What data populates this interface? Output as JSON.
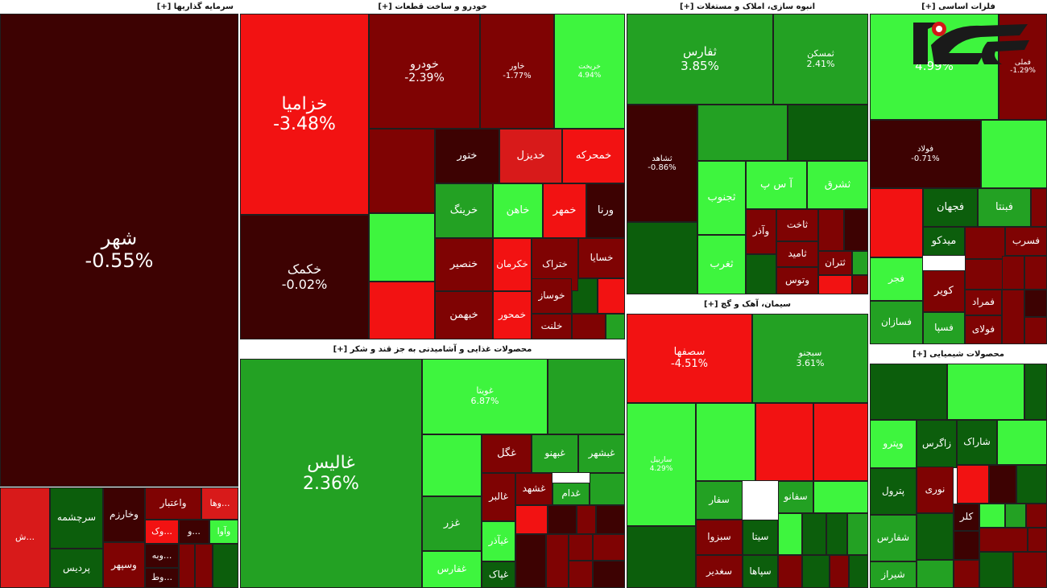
{
  "chart_data": {
    "type": "treemap",
    "title": "",
    "colors": {
      "dark_red": "#3d0202",
      "maroon": "#7f0303",
      "red": "#d81a1a",
      "bright_red": "#f21212",
      "dark_green": "#0c5e0c",
      "green": "#23a123",
      "bright_green": "#3ef53e"
    },
    "sectors": [
      {
        "name": "سرمایه گذاریها [+]",
        "tiles": [
          {
            "symbol": "شهر",
            "change": "-0.55%"
          },
          {
            "symbol": "سرچشمه",
            "change": ""
          },
          {
            "symbol": "پردیس",
            "change": ""
          },
          {
            "symbol": "وخارزم",
            "change": ""
          },
          {
            "symbol": "وسپهر",
            "change": ""
          },
          {
            "symbol": "واعتبار",
            "change": ""
          },
          {
            "symbol": "...وها",
            "change": ""
          },
          {
            "symbol": "...وک",
            "change": ""
          },
          {
            "symbol": "...و",
            "change": ""
          },
          {
            "symbol": "وآوا",
            "change": ""
          },
          {
            "symbol": "...وبه",
            "change": ""
          },
          {
            "symbol": "...وط",
            "change": ""
          },
          {
            "symbol": "...ش",
            "change": ""
          }
        ]
      },
      {
        "name": "خودرو و ساخت قطعات [+]",
        "tiles": [
          {
            "symbol": "خزامیا",
            "change": "-3.48%"
          },
          {
            "symbol": "خودرو",
            "change": "-2.39%"
          },
          {
            "symbol": "خاور",
            "change": "-1.77%"
          },
          {
            "symbol": "خریخت",
            "change": "4.94%"
          },
          {
            "symbol": "خکمک",
            "change": "-0.02%"
          },
          {
            "symbol": "ختور",
            "change": ""
          },
          {
            "symbol": "خدیزل",
            "change": ""
          },
          {
            "symbol": "خمحرکه",
            "change": ""
          },
          {
            "symbol": "خرینگ",
            "change": ""
          },
          {
            "symbol": "خاهن",
            "change": ""
          },
          {
            "symbol": "خمهر",
            "change": ""
          },
          {
            "symbol": "ورنا",
            "change": ""
          },
          {
            "symbol": "خنصیر",
            "change": ""
          },
          {
            "symbol": "خکرمان",
            "change": ""
          },
          {
            "symbol": "ختراک",
            "change": ""
          },
          {
            "symbol": "خسایا",
            "change": ""
          },
          {
            "symbol": "خبهمن",
            "change": ""
          },
          {
            "symbol": "خمحور",
            "change": ""
          },
          {
            "symbol": "خوساز",
            "change": ""
          },
          {
            "symbol": "خلنت",
            "change": ""
          }
        ]
      },
      {
        "name": "انبوه سازی، املاک و مستغلات [+]",
        "tiles": [
          {
            "symbol": "ثفارس",
            "change": "3.85%"
          },
          {
            "symbol": "ثمسکن",
            "change": "2.41%"
          },
          {
            "symbol": "ثشاهد",
            "change": "-0.86%"
          },
          {
            "symbol": "ثجنوب",
            "change": ""
          },
          {
            "symbol": "آ س پ",
            "change": ""
          },
          {
            "symbol": "ثشرق",
            "change": ""
          },
          {
            "symbol": "ثغرب",
            "change": ""
          },
          {
            "symbol": "ثاخت",
            "change": ""
          },
          {
            "symbol": "ثامید",
            "change": ""
          },
          {
            "symbol": "ثتران",
            "change": ""
          },
          {
            "symbol": "وتوس",
            "change": ""
          },
          {
            "symbol": "وآذر",
            "change": ""
          }
        ]
      },
      {
        "name": "فلزات اساسی [+]",
        "tiles": [
          {
            "symbol": "",
            "change": "4.99%"
          },
          {
            "symbol": "فملی",
            "change": "-1.29%"
          },
          {
            "symbol": "فولاد",
            "change": "-0.71%"
          },
          {
            "symbol": "فجهان",
            "change": ""
          },
          {
            "symbol": "فبنتا",
            "change": ""
          },
          {
            "symbol": "میدکو",
            "change": ""
          },
          {
            "symbol": "فسرب",
            "change": ""
          },
          {
            "symbol": "فجر",
            "change": ""
          },
          {
            "symbol": "کویر",
            "change": ""
          },
          {
            "symbol": "فمراد",
            "change": ""
          },
          {
            "symbol": "فسازان",
            "change": ""
          },
          {
            "symbol": "فسپا",
            "change": ""
          },
          {
            "symbol": "فولای",
            "change": ""
          }
        ]
      },
      {
        "name": "محصولات غذایی و آشامیدنی به جز قند و شکر [+]",
        "tiles": [
          {
            "symbol": "غالیس",
            "change": "2.36%"
          },
          {
            "symbol": "غویتا",
            "change": "6.87%"
          },
          {
            "symbol": "غگل",
            "change": ""
          },
          {
            "symbol": "غبهنو",
            "change": ""
          },
          {
            "symbol": "غبشهر",
            "change": ""
          },
          {
            "symbol": "غالبر",
            "change": ""
          },
          {
            "symbol": "غشهد",
            "change": ""
          },
          {
            "symbol": "غدام",
            "change": ""
          },
          {
            "symbol": "غزر",
            "change": ""
          },
          {
            "symbol": "غیآذر",
            "change": ""
          },
          {
            "symbol": "غفارس",
            "change": ""
          },
          {
            "symbol": "غپاک",
            "change": ""
          }
        ]
      },
      {
        "name": "سیمان، آهک و گچ [+]",
        "tiles": [
          {
            "symbol": "سصفها",
            "change": "-4.51%"
          },
          {
            "symbol": "سبجنو",
            "change": "3.61%"
          },
          {
            "symbol": "ساربیل",
            "change": "4.29%"
          },
          {
            "symbol": "سفار",
            "change": ""
          },
          {
            "symbol": "سفانو",
            "change": ""
          },
          {
            "symbol": "سبزوا",
            "change": ""
          },
          {
            "symbol": "سیتا",
            "change": ""
          },
          {
            "symbol": "سغدیر",
            "change": ""
          },
          {
            "symbol": "سپاها",
            "change": ""
          }
        ]
      },
      {
        "name": "محصولات شیمیایی [+]",
        "tiles": [
          {
            "symbol": "وپترو",
            "change": ""
          },
          {
            "symbol": "زاگرس",
            "change": ""
          },
          {
            "symbol": "شاراک",
            "change": ""
          },
          {
            "symbol": "پترول",
            "change": ""
          },
          {
            "symbol": "نوری",
            "change": ""
          },
          {
            "symbol": "شفارس",
            "change": ""
          },
          {
            "symbol": "شیراز",
            "change": ""
          },
          {
            "symbol": "کلر",
            "change": ""
          }
        ]
      }
    ]
  }
}
